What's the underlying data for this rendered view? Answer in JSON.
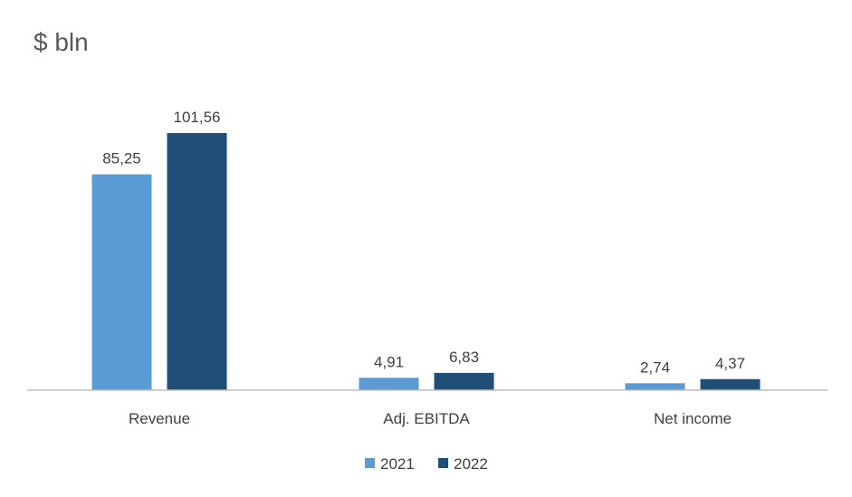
{
  "chart_data": {
    "type": "bar",
    "title": "$ bln",
    "xlabel": "",
    "ylabel": "",
    "categories": [
      "Revenue",
      "Adj. EBITDA",
      "Net income"
    ],
    "series": [
      {
        "name": "2021",
        "values": [
          85.25,
          4.91,
          2.74
        ],
        "labels": [
          "85,25",
          "4,91",
          "2,74"
        ],
        "color": "#5B9BD5"
      },
      {
        "name": "2022",
        "values": [
          101.56,
          6.83,
          4.37
        ],
        "labels": [
          "101,56",
          "6,83",
          "4,37"
        ],
        "color": "#1F4E79"
      }
    ],
    "ylim": [
      0,
      101.56
    ],
    "grid": false,
    "legend_position": "bottom",
    "axis_color": "#BFBFBF"
  }
}
